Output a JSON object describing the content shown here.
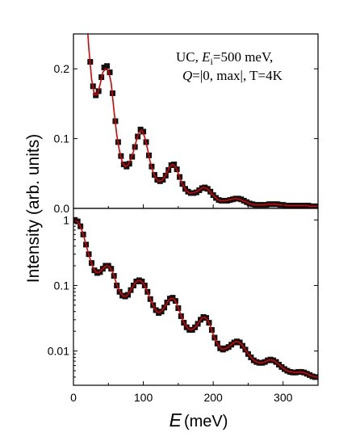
{
  "chart_data": [
    {
      "type": "scatter",
      "panel": "top",
      "scale": "linear",
      "xlim": [
        0,
        350
      ],
      "ylim": [
        0,
        0.25
      ],
      "yticks": [
        "0.0",
        "0.1",
        "0.2"
      ],
      "ytick_values": [
        0,
        0.1,
        0.2
      ],
      "annotation": {
        "line1_prefix": "UC, ",
        "line1_E": "E",
        "line1_sub": "i",
        "line1_suffix": "=500 meV,",
        "line2_Q": "Q",
        "line2_rest": "=|0, max|, T=4K"
      },
      "series": [
        {
          "kind": "points",
          "color": "#111111",
          "x": [
            20,
            24,
            28,
            32,
            36,
            40,
            44,
            48,
            52,
            56,
            60,
            64,
            68,
            72,
            76,
            80,
            84,
            88,
            92,
            96,
            100,
            104,
            108,
            112,
            116,
            120,
            124,
            128,
            132,
            136,
            140,
            144,
            148,
            152,
            156,
            160,
            164,
            168,
            172,
            176,
            180,
            184,
            188,
            192,
            196,
            200,
            204,
            208,
            212,
            216,
            220,
            224,
            228,
            232,
            236,
            240,
            244,
            248,
            252,
            256,
            260,
            264,
            268,
            272,
            276,
            280,
            284,
            288,
            292,
            296,
            300,
            304,
            308,
            312,
            316,
            320,
            324,
            328,
            332,
            336,
            340,
            344,
            348
          ],
          "y": [
            0.27,
            0.21,
            0.175,
            0.162,
            0.168,
            0.188,
            0.202,
            0.204,
            0.195,
            0.165,
            0.125,
            0.095,
            0.075,
            0.063,
            0.06,
            0.064,
            0.074,
            0.088,
            0.103,
            0.113,
            0.11,
            0.095,
            0.076,
            0.06,
            0.048,
            0.041,
            0.039,
            0.041,
            0.047,
            0.055,
            0.062,
            0.063,
            0.056,
            0.045,
            0.035,
            0.028,
            0.024,
            0.022,
            0.022,
            0.023,
            0.026,
            0.029,
            0.03,
            0.028,
            0.024,
            0.019,
            0.015,
            0.012,
            0.011,
            0.011,
            0.011,
            0.012,
            0.013,
            0.014,
            0.014,
            0.013,
            0.011,
            0.009,
            0.007,
            0.006,
            0.005,
            0.005,
            0.005,
            0.005,
            0.005,
            0.006,
            0.006,
            0.006,
            0.006,
            0.005,
            0.005,
            0.004,
            0.004,
            0.004,
            0.004,
            0.004,
            0.004,
            0.004,
            0.004,
            0.004,
            0.003,
            0.003,
            0.003
          ]
        },
        {
          "kind": "fit",
          "color": "#dd0000",
          "x": [
            18,
            22,
            26,
            30,
            34,
            38,
            42,
            46,
            50,
            54,
            58,
            62,
            66,
            70,
            74,
            78,
            82,
            86,
            90,
            94,
            98,
            102,
            106,
            110,
            114,
            118,
            122,
            126,
            130,
            134,
            138,
            142,
            146,
            150,
            154,
            158,
            162,
            166,
            170,
            174,
            178,
            182,
            186,
            190,
            194,
            198,
            202,
            206,
            210,
            214,
            218,
            222,
            226,
            230,
            234,
            238,
            242,
            246,
            250,
            254,
            258,
            262,
            266,
            270,
            274,
            278,
            282,
            286,
            290,
            294,
            298,
            302,
            306,
            310,
            314,
            318,
            322,
            326,
            330,
            334,
            338,
            342,
            346,
            350
          ],
          "y": [
            0.29,
            0.23,
            0.185,
            0.163,
            0.163,
            0.177,
            0.195,
            0.2,
            0.198,
            0.18,
            0.14,
            0.105,
            0.082,
            0.066,
            0.06,
            0.062,
            0.07,
            0.082,
            0.097,
            0.109,
            0.112,
            0.102,
            0.085,
            0.066,
            0.052,
            0.043,
            0.039,
            0.04,
            0.044,
            0.052,
            0.06,
            0.063,
            0.06,
            0.05,
            0.039,
            0.031,
            0.025,
            0.022,
            0.022,
            0.023,
            0.025,
            0.028,
            0.03,
            0.029,
            0.026,
            0.021,
            0.017,
            0.013,
            0.011,
            0.011,
            0.011,
            0.012,
            0.013,
            0.014,
            0.014,
            0.013,
            0.011,
            0.01,
            0.008,
            0.006,
            0.005,
            0.005,
            0.005,
            0.005,
            0.005,
            0.006,
            0.006,
            0.006,
            0.006,
            0.005,
            0.005,
            0.005,
            0.004,
            0.004,
            0.004,
            0.004,
            0.004,
            0.004,
            0.004,
            0.004,
            0.003,
            0.003,
            0.003,
            0.003
          ]
        }
      ]
    },
    {
      "type": "scatter",
      "panel": "bottom",
      "scale": "log",
      "xlim": [
        0,
        350
      ],
      "ylim": [
        0.003,
        1.5
      ],
      "yticks": [
        "1",
        "0.1",
        "0.01"
      ],
      "ytick_values": [
        1,
        0.1,
        0.01
      ],
      "xticks": [
        "0",
        "100",
        "200",
        "300"
      ],
      "xtick_values": [
        0,
        100,
        200,
        300
      ],
      "series": [
        {
          "kind": "points",
          "color": "#111111",
          "x": [
            2,
            6,
            10,
            14,
            18,
            22,
            26,
            30,
            34,
            38,
            42,
            46,
            50,
            54,
            58,
            62,
            66,
            70,
            74,
            78,
            82,
            86,
            90,
            94,
            98,
            102,
            106,
            110,
            114,
            118,
            122,
            126,
            130,
            134,
            138,
            142,
            146,
            150,
            154,
            158,
            162,
            166,
            170,
            174,
            178,
            182,
            186,
            190,
            194,
            198,
            202,
            206,
            210,
            214,
            218,
            222,
            226,
            230,
            234,
            238,
            242,
            246,
            250,
            254,
            258,
            262,
            266,
            270,
            274,
            278,
            282,
            286,
            290,
            294,
            298,
            302,
            306,
            310,
            314,
            318,
            322,
            326,
            330,
            334,
            338,
            342,
            346
          ],
          "y": [
            1.0,
            0.95,
            0.8,
            0.6,
            0.42,
            0.3,
            0.22,
            0.17,
            0.155,
            0.16,
            0.18,
            0.2,
            0.2,
            0.18,
            0.14,
            0.1,
            0.08,
            0.07,
            0.068,
            0.072,
            0.085,
            0.1,
            0.115,
            0.12,
            0.115,
            0.1,
            0.08,
            0.062,
            0.05,
            0.042,
            0.038,
            0.04,
            0.046,
            0.055,
            0.063,
            0.065,
            0.058,
            0.045,
            0.034,
            0.027,
            0.023,
            0.021,
            0.021,
            0.023,
            0.026,
            0.03,
            0.033,
            0.032,
            0.027,
            0.021,
            0.016,
            0.013,
            0.011,
            0.0105,
            0.011,
            0.0115,
            0.0125,
            0.0135,
            0.014,
            0.0135,
            0.012,
            0.0105,
            0.009,
            0.008,
            0.0072,
            0.0068,
            0.0066,
            0.0066,
            0.0068,
            0.0072,
            0.0074,
            0.0072,
            0.0068,
            0.0062,
            0.0057,
            0.0053,
            0.005,
            0.0048,
            0.0047,
            0.0047,
            0.0048,
            0.0048,
            0.0047,
            0.0045,
            0.0043,
            0.0041,
            0.004
          ]
        },
        {
          "kind": "fit",
          "color": "#dd0000",
          "x": [
            0,
            4,
            8,
            12,
            16,
            20,
            24,
            28,
            32,
            36,
            40,
            44,
            48,
            52,
            56,
            60,
            64,
            68,
            72,
            76,
            80,
            84,
            88,
            92,
            96,
            100,
            104,
            108,
            112,
            116,
            120,
            124,
            128,
            132,
            136,
            140,
            144,
            148,
            152,
            156,
            160,
            164,
            168,
            172,
            176,
            180,
            184,
            188,
            192,
            196,
            200,
            204,
            208,
            212,
            216,
            220,
            224,
            228,
            232,
            236,
            240,
            244,
            248,
            252,
            256,
            260,
            264,
            268,
            272,
            276,
            280,
            284,
            288,
            292,
            296,
            300,
            304,
            308,
            312,
            316,
            320,
            324,
            328,
            332,
            336,
            340,
            344,
            348,
            350
          ],
          "y": [
            1.02,
            0.98,
            0.88,
            0.7,
            0.5,
            0.35,
            0.25,
            0.19,
            0.16,
            0.157,
            0.17,
            0.19,
            0.2,
            0.19,
            0.16,
            0.12,
            0.09,
            0.075,
            0.068,
            0.069,
            0.078,
            0.092,
            0.108,
            0.118,
            0.118,
            0.108,
            0.09,
            0.07,
            0.055,
            0.045,
            0.039,
            0.039,
            0.043,
            0.05,
            0.059,
            0.064,
            0.062,
            0.052,
            0.04,
            0.03,
            0.025,
            0.022,
            0.021,
            0.022,
            0.024,
            0.028,
            0.032,
            0.033,
            0.03,
            0.024,
            0.018,
            0.014,
            0.012,
            0.0107,
            0.0107,
            0.0112,
            0.012,
            0.013,
            0.0138,
            0.0138,
            0.0128,
            0.0113,
            0.0097,
            0.0085,
            0.0076,
            0.007,
            0.0067,
            0.0066,
            0.0067,
            0.007,
            0.0073,
            0.0073,
            0.007,
            0.0065,
            0.006,
            0.0055,
            0.0051,
            0.0049,
            0.0048,
            0.0047,
            0.0047,
            0.0048,
            0.0047,
            0.0046,
            0.0044,
            0.0042,
            0.0041,
            0.004,
            0.004
          ]
        }
      ]
    }
  ],
  "axes": {
    "ylabel": "Intensity (arb. units)",
    "xlabel_symbol": "E",
    "xlabel_unit": "(meV)"
  }
}
